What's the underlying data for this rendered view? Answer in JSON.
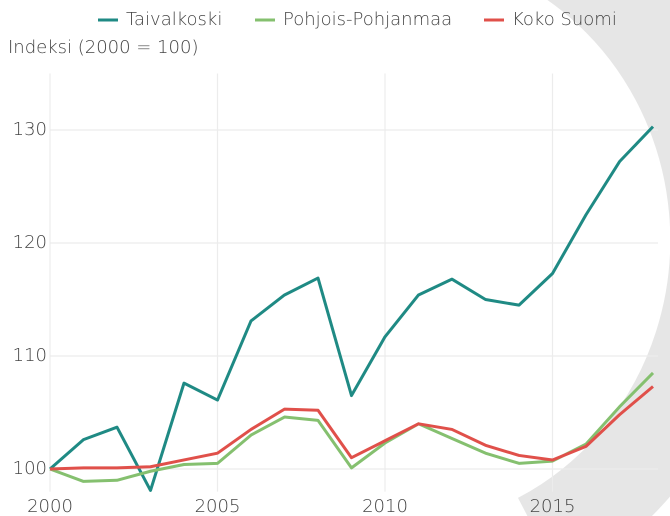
{
  "chart_data": {
    "type": "line",
    "ylabel": "Indeksi (2000 = 100)",
    "x": [
      2000,
      2001,
      2002,
      2003,
      2004,
      2005,
      2006,
      2007,
      2008,
      2009,
      2010,
      2011,
      2012,
      2013,
      2014,
      2015,
      2016,
      2017,
      2018
    ],
    "series": [
      {
        "name": "Taivalkoski",
        "color": "#1f8a84",
        "values": [
          100,
          102.6,
          103.7,
          98.1,
          107.6,
          106.1,
          113.1,
          115.4,
          116.9,
          106.5,
          111.7,
          115.4,
          116.8,
          115.0,
          114.5,
          117.3,
          122.5,
          127.2,
          130.3
        ]
      },
      {
        "name": "Pohjois-Pohjanmaa",
        "color": "#85c06f",
        "values": [
          100,
          98.9,
          99.0,
          99.8,
          100.4,
          100.5,
          103.0,
          104.6,
          104.3,
          100.1,
          102.3,
          104.0,
          102.7,
          101.4,
          100.5,
          100.7,
          102.2,
          105.5,
          108.5
        ]
      },
      {
        "name": "Koko Suomi",
        "color": "#e0504a",
        "values": [
          100,
          100.1,
          100.1,
          100.2,
          100.8,
          101.4,
          103.5,
          105.3,
          105.2,
          101.0,
          102.5,
          104.0,
          103.5,
          102.1,
          101.2,
          100.8,
          102.0,
          104.8,
          107.3
        ]
      }
    ],
    "xlim": [
      2000,
      2018
    ],
    "xticks": [
      2000,
      2005,
      2010,
      2015
    ],
    "ylim": [
      98,
      135
    ],
    "yticks": [
      100,
      110,
      120,
      130
    ],
    "grid": true,
    "legend": "top"
  }
}
